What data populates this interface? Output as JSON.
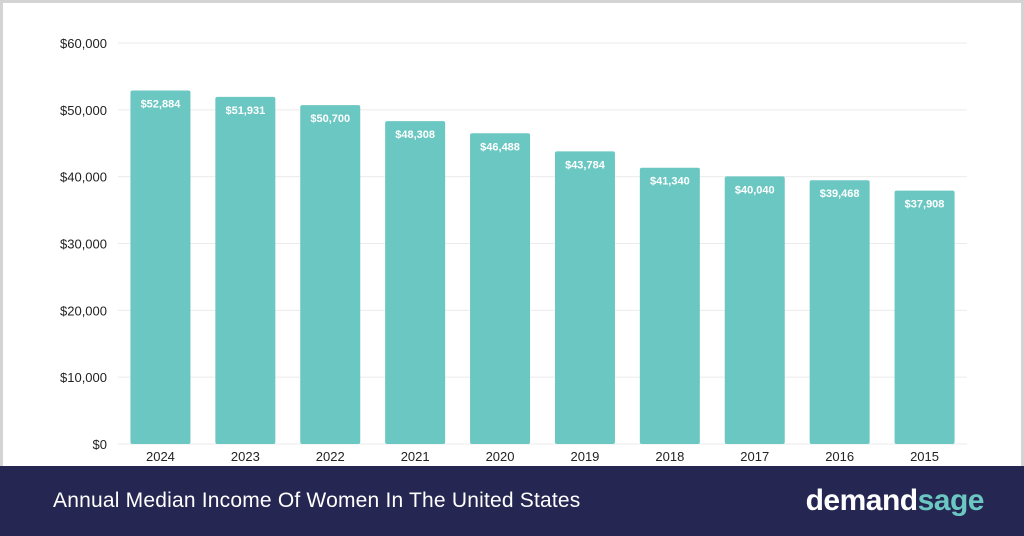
{
  "chart_data": {
    "type": "bar",
    "title": "Annual Median Income Of Women In The United States",
    "categories": [
      "2024",
      "2023",
      "2022",
      "2021",
      "2020",
      "2019",
      "2018",
      "2017",
      "2016",
      "2015"
    ],
    "values": [
      52884,
      51931,
      50700,
      48308,
      46488,
      43784,
      41340,
      40040,
      39468,
      37908
    ],
    "value_labels": [
      "$52,884",
      "$51,931",
      "$50,700",
      "$48,308",
      "$46,488",
      "$43,784",
      "$41,340",
      "$40,040",
      "$39,468",
      "$37,908"
    ],
    "ylim": [
      0,
      60000
    ],
    "yticks": [
      0,
      10000,
      20000,
      30000,
      40000,
      50000,
      60000
    ],
    "ytick_labels": [
      "$0",
      "$10,000",
      "$20,000",
      "$30,000",
      "$40,000",
      "$50,000",
      "$60,000"
    ],
    "xlabel": "",
    "ylabel": "",
    "grid": true,
    "legend": "none",
    "bar_color": "#6bc7c2"
  },
  "footer": {
    "title": "Annual Median Income Of Women In The United States",
    "brand_part1": "demand",
    "brand_part2": "sage",
    "background": "#252651"
  }
}
